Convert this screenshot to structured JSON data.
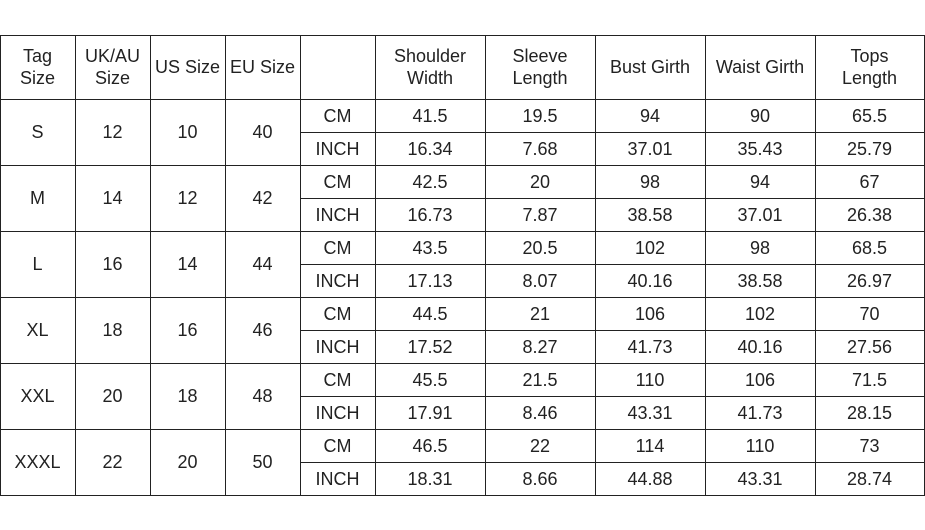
{
  "table": {
    "header": [
      "Tag Size",
      "UK/AU Size",
      "US Size",
      "EU Size",
      "Shoulder Width",
      "Sleeve Length",
      "Bust Girth",
      "Waist Girth",
      "Tops Length"
    ],
    "rows": [
      {
        "tag": "S",
        "uk_au": 12,
        "us": 10,
        "eu": 40,
        "cm": {
          "unit": "CM",
          "values": [
            41.5,
            19.5,
            94,
            90,
            65.5
          ]
        },
        "inch": {
          "unit": "INCH",
          "values": [
            16.34,
            7.68,
            37.01,
            35.43,
            25.79
          ]
        }
      },
      {
        "tag": "M",
        "uk_au": 14,
        "us": 12,
        "eu": 42,
        "cm": {
          "unit": "CM",
          "values": [
            42.5,
            20,
            98,
            94,
            67
          ]
        },
        "inch": {
          "unit": "INCH",
          "values": [
            16.73,
            7.87,
            38.58,
            37.01,
            26.38
          ]
        }
      },
      {
        "tag": "L",
        "uk_au": 16,
        "us": 14,
        "eu": 44,
        "cm": {
          "unit": "CM",
          "values": [
            43.5,
            20.5,
            102,
            98,
            68.5
          ]
        },
        "inch": {
          "unit": "INCH",
          "values": [
            17.13,
            8.07,
            40.16,
            38.58,
            26.97
          ]
        }
      },
      {
        "tag": "XL",
        "uk_au": 18,
        "us": 16,
        "eu": 46,
        "cm": {
          "unit": "CM",
          "values": [
            44.5,
            21,
            106,
            102,
            70
          ]
        },
        "inch": {
          "unit": "INCH",
          "values": [
            17.52,
            8.27,
            41.73,
            40.16,
            27.56
          ]
        }
      },
      {
        "tag": "XXL",
        "uk_au": 20,
        "us": 18,
        "eu": 48,
        "cm": {
          "unit": "CM",
          "values": [
            45.5,
            21.5,
            110,
            106,
            71.5
          ]
        },
        "inch": {
          "unit": "INCH",
          "values": [
            17.91,
            8.46,
            43.31,
            41.73,
            28.15
          ]
        }
      },
      {
        "tag": "XXXL",
        "uk_au": 22,
        "us": 20,
        "eu": 50,
        "cm": {
          "unit": "CM",
          "values": [
            46.5,
            22,
            114,
            110,
            73
          ]
        },
        "inch": {
          "unit": "INCH",
          "values": [
            18.31,
            8.66,
            44.88,
            43.31,
            28.74
          ]
        }
      }
    ]
  }
}
